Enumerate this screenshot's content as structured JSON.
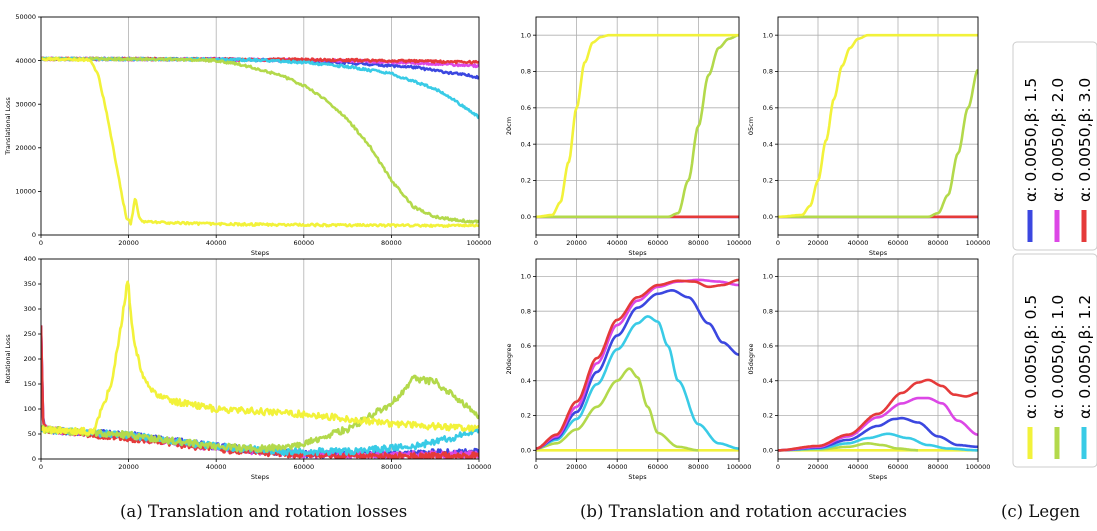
{
  "captions": {
    "a": "(a) Translation and rotation losses",
    "b": "(b) Translation and rotation accuracies",
    "c": "(c) Legen"
  },
  "colors": {
    "a0050_b05": "#f2f23a",
    "a0050_b10": "#b3d94b",
    "a0050_b12": "#39cbe6",
    "a0050_b15": "#3b47e0",
    "a0050_b20": "#dc47e6",
    "a0050_b30": "#e53a3a"
  },
  "legend": {
    "top": [
      {
        "key": "a0050_b15",
        "label": "α: 0.0050,β: 1.5"
      },
      {
        "key": "a0050_b20",
        "label": "α: 0.0050,β: 2.0"
      },
      {
        "key": "a0050_b30",
        "label": "α: 0.0050,β: 3.0"
      }
    ],
    "bottom": [
      {
        "key": "a0050_b05",
        "label": "α: 0.0050,β: 0.5"
      },
      {
        "key": "a0050_b10",
        "label": "α: 0.0050,β: 1.0"
      },
      {
        "key": "a0050_b12",
        "label": "α: 0.0050,β: 1.2"
      }
    ]
  },
  "chart_data": [
    {
      "id": "trans_loss",
      "type": "line",
      "ylabel": "Translational Loss",
      "xlabel": "Steps",
      "xlim": [
        0,
        100000
      ],
      "ylim": [
        0,
        50000
      ],
      "xticks": [
        0,
        20000,
        40000,
        60000,
        80000,
        100000
      ],
      "yticks": [
        0,
        10000,
        20000,
        30000,
        40000,
        50000
      ],
      "grid": "x",
      "noise": 250,
      "series": [
        {
          "key": "a0050_b15",
          "x": [
            0,
            40000,
            55000,
            70000,
            85000,
            100000
          ],
          "y": [
            40400,
            40300,
            40100,
            39500,
            38500,
            36200
          ]
        },
        {
          "key": "a0050_b20",
          "x": [
            0,
            40000,
            60000,
            80000,
            100000
          ],
          "y": [
            40400,
            40300,
            40100,
            39700,
            38800
          ]
        },
        {
          "key": "a0050_b30",
          "x": [
            0,
            40000,
            60000,
            80000,
            100000
          ],
          "y": [
            40400,
            40300,
            40200,
            40000,
            39600
          ]
        },
        {
          "key": "a0050_b12",
          "x": [
            0,
            40000,
            50000,
            60000,
            70000,
            80000,
            90000,
            95000,
            100000
          ],
          "y": [
            40400,
            40300,
            40100,
            39600,
            38600,
            37000,
            33500,
            30500,
            27000
          ]
        },
        {
          "key": "a0050_b10",
          "x": [
            0,
            30000,
            40000,
            45000,
            50000,
            55000,
            60000,
            65000,
            70000,
            75000,
            80000,
            85000,
            90000,
            95000,
            100000
          ],
          "y": [
            40400,
            40300,
            40000,
            39200,
            38000,
            36500,
            34300,
            31000,
            26500,
            20500,
            12500,
            6500,
            4200,
            3400,
            3000
          ]
        },
        {
          "key": "a0050_b05",
          "x": [
            0,
            11000,
            13000,
            15000,
            17000,
            18500,
            19500,
            20500,
            21500,
            22500,
            23500,
            25000,
            30000,
            40000,
            60000,
            80000,
            100000
          ],
          "y": [
            40400,
            40200,
            37000,
            28000,
            17000,
            9000,
            4000,
            2600,
            8500,
            3800,
            3000,
            3000,
            2800,
            2500,
            2300,
            2200,
            2100
          ]
        }
      ]
    },
    {
      "id": "rot_loss",
      "type": "line",
      "ylabel": "Rotational Loss",
      "xlabel": "Steps",
      "xlim": [
        0,
        100000
      ],
      "ylim": [
        0,
        400
      ],
      "xticks": [
        0,
        20000,
        40000,
        60000,
        80000,
        100000
      ],
      "yticks": [
        0,
        50,
        100,
        150,
        200,
        250,
        300,
        350,
        400
      ],
      "grid": "x",
      "noise": 6,
      "series": [
        {
          "key": "a0050_b15",
          "x": [
            0,
            500,
            1500,
            20000,
            40000,
            60000,
            80000,
            100000
          ],
          "y": [
            270,
            70,
            58,
            48,
            25,
            10,
            10,
            15
          ]
        },
        {
          "key": "a0050_b20",
          "x": [
            0,
            500,
            1500,
            20000,
            40000,
            60000,
            80000,
            100000
          ],
          "y": [
            270,
            70,
            58,
            45,
            22,
            9,
            8,
            10
          ]
        },
        {
          "key": "a0050_b30",
          "x": [
            0,
            500,
            1500,
            20000,
            40000,
            60000,
            80000,
            100000
          ],
          "y": [
            270,
            70,
            58,
            42,
            20,
            8,
            6,
            7
          ]
        },
        {
          "key": "a0050_b12",
          "x": [
            0,
            1500,
            20000,
            40000,
            55000,
            70000,
            85000,
            100000
          ],
          "y": [
            60,
            58,
            48,
            25,
            15,
            15,
            25,
            55
          ]
        },
        {
          "key": "a0050_b10",
          "x": [
            0,
            1500,
            20000,
            40000,
            50000,
            60000,
            70000,
            80000,
            85000,
            90000,
            95000,
            100000
          ],
          "y": [
            60,
            58,
            48,
            25,
            20,
            30,
            60,
            110,
            160,
            155,
            120,
            85
          ]
        },
        {
          "key": "a0050_b05",
          "x": [
            0,
            1500,
            12000,
            16000,
            18000,
            19800,
            21000,
            23000,
            26000,
            30000,
            40000,
            50000,
            60000,
            70000,
            80000,
            90000,
            100000
          ],
          "y": [
            60,
            58,
            55,
            150,
            250,
            360,
            250,
            170,
            130,
            115,
            100,
            95,
            90,
            80,
            70,
            65,
            60
          ]
        }
      ]
    },
    {
      "id": "acc_20cm",
      "type": "line",
      "ylabel": "20cm",
      "xlabel": "Steps",
      "xlim": [
        0,
        100000
      ],
      "ylim": [
        -0.1,
        1.1
      ],
      "xticks": [
        0,
        20000,
        40000,
        60000,
        80000,
        100000
      ],
      "yticks": [
        0.0,
        0.2,
        0.4,
        0.6,
        0.8,
        1.0
      ],
      "grid": "both",
      "noise": 0,
      "series": [
        {
          "key": "a0050_b15",
          "x": [
            0,
            100000
          ],
          "y": [
            0,
            0
          ]
        },
        {
          "key": "a0050_b12",
          "x": [
            0,
            100000
          ],
          "y": [
            0,
            0
          ]
        },
        {
          "key": "a0050_b20",
          "x": [
            0,
            100000
          ],
          "y": [
            0,
            0
          ]
        },
        {
          "key": "a0050_b30",
          "x": [
            0,
            100000
          ],
          "y": [
            0,
            0
          ]
        },
        {
          "key": "a0050_b10",
          "x": [
            0,
            65000,
            70000,
            75000,
            80000,
            85000,
            90000,
            95000,
            100000
          ],
          "y": [
            0,
            0,
            0.02,
            0.2,
            0.5,
            0.78,
            0.93,
            0.98,
            1.0
          ]
        },
        {
          "key": "a0050_b05",
          "x": [
            0,
            8000,
            12000,
            16000,
            20000,
            24000,
            28000,
            32000,
            36000,
            100000
          ],
          "y": [
            0,
            0.01,
            0.08,
            0.3,
            0.6,
            0.85,
            0.96,
            0.99,
            1.0,
            1.0
          ]
        }
      ]
    },
    {
      "id": "acc_05cm",
      "type": "line",
      "ylabel": "05cm",
      "xlabel": "Steps",
      "xlim": [
        0,
        100000
      ],
      "ylim": [
        -0.1,
        1.1
      ],
      "xticks": [
        0,
        20000,
        40000,
        60000,
        80000,
        100000
      ],
      "yticks": [
        0.0,
        0.2,
        0.4,
        0.6,
        0.8,
        1.0
      ],
      "grid": "both",
      "noise": 0,
      "series": [
        {
          "key": "a0050_b15",
          "x": [
            0,
            100000
          ],
          "y": [
            0,
            0
          ]
        },
        {
          "key": "a0050_b12",
          "x": [
            0,
            100000
          ],
          "y": [
            0,
            0
          ]
        },
        {
          "key": "a0050_b20",
          "x": [
            0,
            100000
          ],
          "y": [
            0,
            0
          ]
        },
        {
          "key": "a0050_b30",
          "x": [
            0,
            100000
          ],
          "y": [
            0,
            0
          ]
        },
        {
          "key": "a0050_b10",
          "x": [
            0,
            75000,
            80000,
            85000,
            90000,
            95000,
            100000
          ],
          "y": [
            0,
            0,
            0.02,
            0.12,
            0.35,
            0.6,
            0.81
          ]
        },
        {
          "key": "a0050_b05",
          "x": [
            0,
            12000,
            16000,
            20000,
            24000,
            28000,
            32000,
            36000,
            40000,
            45000,
            100000
          ],
          "y": [
            0,
            0.01,
            0.06,
            0.2,
            0.42,
            0.65,
            0.83,
            0.93,
            0.98,
            1.0,
            1.0
          ]
        }
      ]
    },
    {
      "id": "acc_20deg",
      "type": "line",
      "ylabel": "20degree",
      "xlabel": "Steps",
      "xlim": [
        0,
        100000
      ],
      "ylim": [
        -0.05,
        1.1
      ],
      "xticks": [
        0,
        20000,
        40000,
        60000,
        80000,
        100000
      ],
      "yticks": [
        0.0,
        0.2,
        0.4,
        0.6,
        0.8,
        1.0
      ],
      "grid": "both",
      "noise": 0,
      "series": [
        {
          "key": "a0050_b05",
          "x": [
            0,
            100000
          ],
          "y": [
            0.0,
            0.0
          ]
        },
        {
          "key": "a0050_b10",
          "x": [
            0,
            10000,
            20000,
            30000,
            40000,
            46000,
            50000,
            55000,
            60000,
            70000,
            80000
          ],
          "y": [
            0.01,
            0.04,
            0.12,
            0.25,
            0.4,
            0.47,
            0.42,
            0.25,
            0.1,
            0.02,
            0.0
          ]
        },
        {
          "key": "a0050_b12",
          "x": [
            0,
            10000,
            20000,
            30000,
            40000,
            50000,
            55000,
            60000,
            65000,
            70000,
            80000,
            90000,
            100000
          ],
          "y": [
            0.01,
            0.06,
            0.18,
            0.38,
            0.58,
            0.73,
            0.77,
            0.74,
            0.6,
            0.4,
            0.15,
            0.04,
            0.01
          ]
        },
        {
          "key": "a0050_b15",
          "x": [
            0,
            10000,
            20000,
            30000,
            40000,
            50000,
            60000,
            67000,
            75000,
            85000,
            92000,
            100000
          ],
          "y": [
            0.01,
            0.07,
            0.22,
            0.45,
            0.66,
            0.82,
            0.9,
            0.92,
            0.88,
            0.73,
            0.62,
            0.55
          ]
        },
        {
          "key": "a0050_b20",
          "x": [
            0,
            10000,
            20000,
            30000,
            40000,
            50000,
            60000,
            70000,
            80000,
            90000,
            100000
          ],
          "y": [
            0.01,
            0.08,
            0.25,
            0.5,
            0.72,
            0.86,
            0.94,
            0.97,
            0.98,
            0.97,
            0.95
          ]
        },
        {
          "key": "a0050_b30",
          "x": [
            0,
            10000,
            20000,
            30000,
            40000,
            50000,
            60000,
            70000,
            78000,
            85000,
            92000,
            100000
          ],
          "y": [
            0.01,
            0.09,
            0.28,
            0.53,
            0.75,
            0.88,
            0.95,
            0.975,
            0.97,
            0.94,
            0.95,
            0.98
          ]
        }
      ]
    },
    {
      "id": "acc_05deg",
      "type": "line",
      "ylabel": "05degree",
      "xlabel": "Steps",
      "xlim": [
        0,
        100000
      ],
      "ylim": [
        -0.05,
        1.1
      ],
      "xticks": [
        0,
        20000,
        40000,
        60000,
        80000,
        100000
      ],
      "yticks": [
        0.0,
        0.2,
        0.4,
        0.6,
        0.8,
        1.0
      ],
      "grid": "both",
      "noise": 0,
      "series": [
        {
          "key": "a0050_b05",
          "x": [
            0,
            100000
          ],
          "y": [
            0.0,
            0.0
          ]
        },
        {
          "key": "a0050_b10",
          "x": [
            0,
            20000,
            35000,
            45000,
            52000,
            60000,
            70000
          ],
          "y": [
            0.0,
            0.005,
            0.02,
            0.04,
            0.03,
            0.01,
            0.0
          ]
        },
        {
          "key": "a0050_b12",
          "x": [
            0,
            20000,
            35000,
            45000,
            55000,
            65000,
            75000,
            85000,
            100000
          ],
          "y": [
            0.0,
            0.01,
            0.04,
            0.07,
            0.095,
            0.07,
            0.03,
            0.01,
            0.0
          ]
        },
        {
          "key": "a0050_b15",
          "x": [
            0,
            20000,
            35000,
            50000,
            58000,
            62000,
            70000,
            80000,
            90000,
            100000
          ],
          "y": [
            0.0,
            0.015,
            0.06,
            0.14,
            0.18,
            0.185,
            0.16,
            0.08,
            0.03,
            0.02
          ]
        },
        {
          "key": "a0050_b20",
          "x": [
            0,
            20000,
            35000,
            50000,
            62000,
            70000,
            75000,
            82000,
            90000,
            100000
          ],
          "y": [
            0.0,
            0.02,
            0.08,
            0.19,
            0.27,
            0.3,
            0.3,
            0.27,
            0.17,
            0.09
          ]
        },
        {
          "key": "a0050_b30",
          "x": [
            0,
            20000,
            35000,
            50000,
            62000,
            70000,
            75000,
            82000,
            88000,
            94000,
            100000
          ],
          "y": [
            0.0,
            0.025,
            0.09,
            0.21,
            0.33,
            0.39,
            0.405,
            0.37,
            0.32,
            0.31,
            0.33
          ]
        }
      ]
    }
  ]
}
